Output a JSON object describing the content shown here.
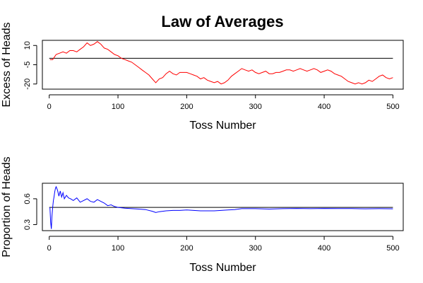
{
  "chart_data": {
    "title": "Law of Averages",
    "charts": [
      {
        "type": "line",
        "name": "excess-of-heads",
        "xlabel": "Toss Number",
        "ylabel": "Excess of Heads",
        "xlim": [
          -10,
          515
        ],
        "ylim": [
          -24,
          14
        ],
        "xticks": [
          0,
          100,
          200,
          300,
          400,
          500
        ],
        "yticks": [
          10,
          -5,
          -20
        ],
        "reference_y": 0,
        "series": [
          {
            "color": "#ff0000",
            "x": [
              1,
              5,
              10,
              15,
              20,
              25,
              30,
              35,
              40,
              45,
              50,
              55,
              60,
              65,
              70,
              75,
              80,
              85,
              90,
              95,
              100,
              105,
              110,
              115,
              120,
              125,
              130,
              135,
              140,
              145,
              150,
              155,
              160,
              165,
              170,
              175,
              180,
              185,
              190,
              195,
              200,
              205,
              210,
              215,
              220,
              225,
              230,
              235,
              240,
              245,
              250,
              255,
              260,
              265,
              270,
              275,
              280,
              285,
              290,
              295,
              300,
              305,
              310,
              315,
              320,
              325,
              330,
              335,
              340,
              345,
              350,
              355,
              360,
              365,
              370,
              375,
              380,
              385,
              390,
              395,
              400,
              405,
              410,
              415,
              420,
              425,
              430,
              435,
              440,
              445,
              450,
              455,
              460,
              465,
              470,
              475,
              480,
              485,
              490,
              495,
              500
            ],
            "y": [
              -1,
              -1,
              3,
              4,
              5,
              4,
              6,
              6,
              5,
              7,
              9,
              12,
              10,
              11,
              13,
              11,
              8,
              7,
              5,
              3,
              2,
              0,
              -1,
              -2,
              -3,
              -5,
              -7,
              -9,
              -11,
              -13,
              -16,
              -19,
              -16,
              -15,
              -12,
              -10,
              -12,
              -13,
              -11,
              -11,
              -11,
              -12,
              -13,
              -14,
              -16,
              -15,
              -17,
              -18,
              -19,
              -18,
              -20,
              -19,
              -17,
              -14,
              -12,
              -10,
              -8,
              -9,
              -10,
              -9,
              -11,
              -12,
              -11,
              -10,
              -12,
              -12,
              -11,
              -11,
              -10,
              -9,
              -9,
              -10,
              -9,
              -8,
              -9,
              -10,
              -9,
              -8,
              -9,
              -11,
              -10,
              -9,
              -10,
              -12,
              -13,
              -14,
              -16,
              -18,
              -19,
              -20,
              -19,
              -20,
              -19,
              -17,
              -18,
              -16,
              -14,
              -13,
              -15,
              -16,
              -15
            ]
          }
        ]
      },
      {
        "type": "line",
        "name": "proportion-of-heads",
        "xlabel": "Toss Number",
        "ylabel": "Proportion of Heads",
        "xlim": [
          -10,
          515
        ],
        "ylim": [
          0.23,
          0.78
        ],
        "xticks": [
          0,
          100,
          200,
          300,
          400,
          500
        ],
        "yticks": [
          0.6,
          0.3
        ],
        "ytick_labels": [
          "0.6",
          "0.3"
        ],
        "reference_y": 0.5,
        "series": [
          {
            "color": "#0000ff",
            "x": [
              1,
              2,
              3,
              4,
              5,
              6,
              7,
              8,
              9,
              10,
              12,
              14,
              16,
              18,
              20,
              22,
              25,
              28,
              31,
              35,
              40,
              45,
              50,
              55,
              60,
              65,
              70,
              75,
              80,
              85,
              90,
              95,
              100,
              110,
              120,
              130,
              140,
              150,
              155,
              160,
              170,
              180,
              190,
              200,
              210,
              220,
              230,
              240,
              250,
              260,
              270,
              280,
              290,
              300,
              320,
              340,
              360,
              380,
              400,
              420,
              440,
              460,
              480,
              500
            ],
            "y": [
              0.5,
              0.33,
              0.25,
              0.4,
              0.5,
              0.58,
              0.62,
              0.68,
              0.72,
              0.74,
              0.7,
              0.63,
              0.69,
              0.62,
              0.67,
              0.6,
              0.64,
              0.61,
              0.6,
              0.58,
              0.61,
              0.56,
              0.58,
              0.6,
              0.57,
              0.56,
              0.59,
              0.57,
              0.55,
              0.52,
              0.53,
              0.51,
              0.5,
              0.49,
              0.485,
              0.48,
              0.475,
              0.455,
              0.44,
              0.45,
              0.46,
              0.465,
              0.465,
              0.47,
              0.465,
              0.46,
              0.46,
              0.46,
              0.465,
              0.47,
              0.475,
              0.485,
              0.485,
              0.485,
              0.48,
              0.485,
              0.488,
              0.485,
              0.488,
              0.486,
              0.486,
              0.484,
              0.485,
              0.484
            ]
          }
        ]
      }
    ]
  }
}
